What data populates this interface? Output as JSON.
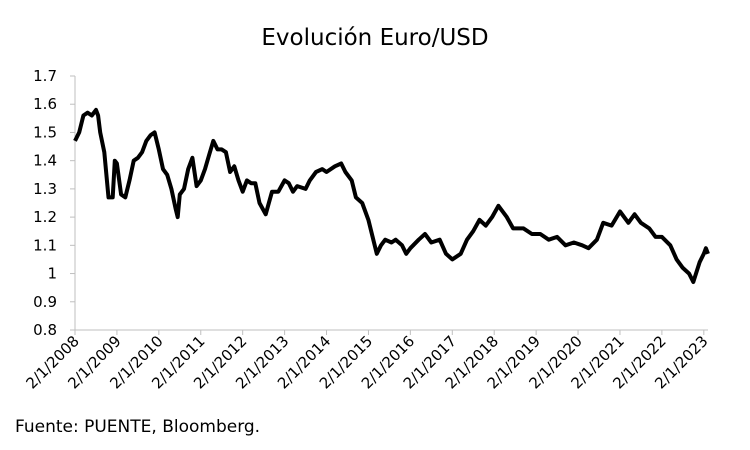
{
  "chart_data": {
    "type": "line",
    "title": "Evolución Euro/USD",
    "source": "Fuente: PUENTE, Bloomberg.",
    "color": "#000000",
    "x": [
      2008.0,
      2008.1,
      2008.2,
      2008.3,
      2008.4,
      2008.5,
      2008.55,
      2008.6,
      2008.7,
      2008.8,
      2008.9,
      2008.95,
      2009.0,
      2009.1,
      2009.2,
      2009.3,
      2009.4,
      2009.5,
      2009.6,
      2009.7,
      2009.8,
      2009.9,
      2010.0,
      2010.1,
      2010.2,
      2010.3,
      2010.4,
      2010.45,
      2010.5,
      2010.6,
      2010.7,
      2010.8,
      2010.9,
      2011.0,
      2011.1,
      2011.2,
      2011.3,
      2011.4,
      2011.5,
      2011.6,
      2011.7,
      2011.8,
      2011.9,
      2012.0,
      2012.1,
      2012.2,
      2012.3,
      2012.4,
      2012.55,
      2012.7,
      2012.85,
      2013.0,
      2013.1,
      2013.2,
      2013.3,
      2013.5,
      2013.6,
      2013.75,
      2013.9,
      2014.0,
      2014.2,
      2014.35,
      2014.45,
      2014.6,
      2014.7,
      2014.85,
      2015.0,
      2015.1,
      2015.2,
      2015.3,
      2015.4,
      2015.55,
      2015.65,
      2015.8,
      2015.9,
      2016.0,
      2016.2,
      2016.35,
      2016.5,
      2016.7,
      2016.85,
      2017.0,
      2017.2,
      2017.35,
      2017.5,
      2017.65,
      2017.8,
      2017.95,
      2018.1,
      2018.3,
      2018.45,
      2018.7,
      2018.9,
      2019.1,
      2019.3,
      2019.5,
      2019.7,
      2019.9,
      2020.1,
      2020.25,
      2020.45,
      2020.6,
      2020.8,
      2021.0,
      2021.2,
      2021.35,
      2021.5,
      2021.7,
      2021.85,
      2022.0,
      2022.2,
      2022.35,
      2022.5,
      2022.65,
      2022.75,
      2022.9,
      2023.0,
      2023.05,
      2023.1
    ],
    "values": [
      1.47,
      1.5,
      1.56,
      1.57,
      1.56,
      1.58,
      1.56,
      1.5,
      1.43,
      1.27,
      1.27,
      1.4,
      1.39,
      1.28,
      1.27,
      1.33,
      1.4,
      1.41,
      1.43,
      1.47,
      1.49,
      1.5,
      1.44,
      1.37,
      1.35,
      1.3,
      1.23,
      1.2,
      1.28,
      1.3,
      1.37,
      1.41,
      1.31,
      1.33,
      1.37,
      1.42,
      1.47,
      1.44,
      1.44,
      1.43,
      1.36,
      1.38,
      1.33,
      1.29,
      1.33,
      1.32,
      1.32,
      1.25,
      1.21,
      1.29,
      1.29,
      1.33,
      1.32,
      1.29,
      1.31,
      1.3,
      1.33,
      1.36,
      1.37,
      1.36,
      1.38,
      1.39,
      1.36,
      1.33,
      1.27,
      1.25,
      1.19,
      1.13,
      1.07,
      1.1,
      1.12,
      1.11,
      1.12,
      1.1,
      1.07,
      1.09,
      1.12,
      1.14,
      1.11,
      1.12,
      1.07,
      1.05,
      1.07,
      1.12,
      1.15,
      1.19,
      1.17,
      1.2,
      1.24,
      1.2,
      1.16,
      1.16,
      1.14,
      1.14,
      1.12,
      1.13,
      1.1,
      1.11,
      1.1,
      1.09,
      1.12,
      1.18,
      1.17,
      1.22,
      1.18,
      1.21,
      1.18,
      1.16,
      1.13,
      1.13,
      1.1,
      1.05,
      1.02,
      1.0,
      0.97,
      1.04,
      1.07,
      1.09,
      1.07
    ],
    "xlim": [
      2008,
      2023.1
    ],
    "xticks": [
      {
        "value": 2008,
        "label": "2/1/2008"
      },
      {
        "value": 2009,
        "label": "2/1/2009"
      },
      {
        "value": 2010,
        "label": "2/1/2010"
      },
      {
        "value": 2011,
        "label": "2/1/2011"
      },
      {
        "value": 2012,
        "label": "2/1/2012"
      },
      {
        "value": 2013,
        "label": "2/1/2013"
      },
      {
        "value": 2014,
        "label": "2/1/2014"
      },
      {
        "value": 2015,
        "label": "2/1/2015"
      },
      {
        "value": 2016,
        "label": "2/1/2016"
      },
      {
        "value": 2017,
        "label": "2/1/2017"
      },
      {
        "value": 2018,
        "label": "2/1/2018"
      },
      {
        "value": 2019,
        "label": "2/1/2019"
      },
      {
        "value": 2020,
        "label": "2/1/2020"
      },
      {
        "value": 2021,
        "label": "2/1/2021"
      },
      {
        "value": 2022,
        "label": "2/1/2022"
      },
      {
        "value": 2023,
        "label": "2/1/2023"
      }
    ],
    "ylim": [
      0.8,
      1.7
    ],
    "yticks": [
      0.8,
      0.9,
      1,
      1.1,
      1.2,
      1.3,
      1.4,
      1.5,
      1.6,
      1.7
    ]
  }
}
